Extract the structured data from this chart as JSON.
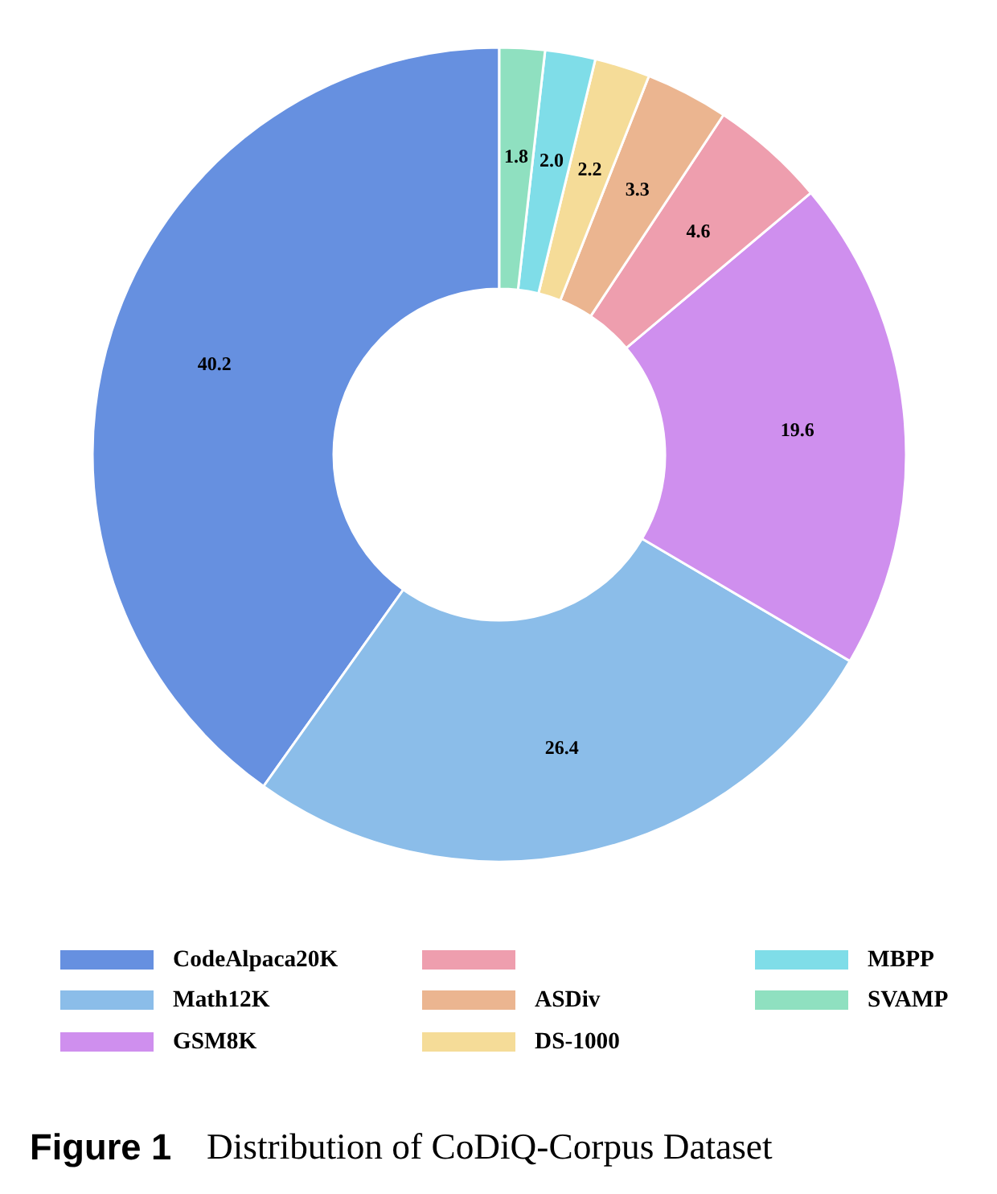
{
  "chart_data": {
    "type": "donut",
    "title": "Distribution of CoDiQ-Corpus Dataset",
    "annotations": [
      "Figure 1"
    ],
    "categories": [
      "CodeAlpaca20K",
      "Math12K",
      "GSM8K",
      null,
      "ASDiv",
      "DS-1000",
      "MBPP",
      "SVAMP"
    ],
    "values": [
      40.2,
      26.4,
      19.6,
      4.6,
      3.3,
      2.2,
      2.0,
      1.8
    ],
    "colors": [
      "#6690e0",
      "#8bbde9",
      "#cf8fee",
      "#ee9eae",
      "#ebb590",
      "#f5dc98",
      "#7fdde8",
      "#8fe0c0"
    ],
    "value_labels": [
      "40.2",
      "26.4",
      "19.6",
      "4.6",
      "3.3",
      "2.2",
      "2.0",
      "1.8"
    ],
    "legend": "bottom"
  }
}
